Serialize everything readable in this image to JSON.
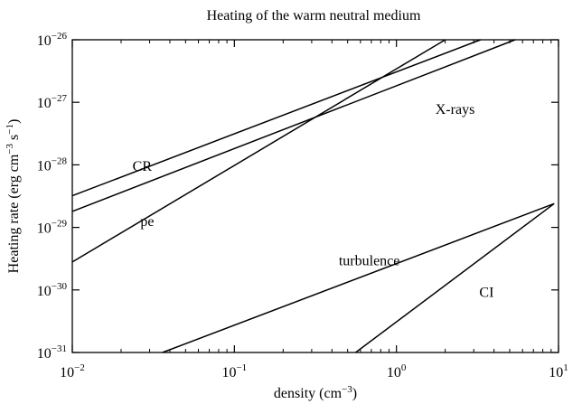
{
  "chart_data": {
    "type": "line",
    "title": "Heating of the warm neutral medium",
    "xlabel": "density (cm",
    "xlabel_exp": "−3",
    "xlabel_end": ")",
    "ylabel": {
      "pre": "Heating rate (erg cm",
      "exp1": "−3",
      "mid": " s",
      "exp2": "−1",
      "post": ")"
    },
    "x_scale": "log",
    "y_scale": "log",
    "xlim": [
      0.01,
      10
    ],
    "ylim": [
      1e-31,
      1e-26
    ],
    "grid": false,
    "x_ticks": [
      {
        "value": 0.01,
        "base": "10",
        "exp": "−2"
      },
      {
        "value": 0.1,
        "base": "10",
        "exp": "−1"
      },
      {
        "value": 1,
        "base": "10",
        "exp": "0"
      },
      {
        "value": 10,
        "base": "10",
        "exp": "1"
      }
    ],
    "y_ticks": [
      {
        "value": 1e-31,
        "base": "10",
        "exp": "−31"
      },
      {
        "value": 1e-30,
        "base": "10",
        "exp": "−30"
      },
      {
        "value": 1e-29,
        "base": "10",
        "exp": "−29"
      },
      {
        "value": 1e-28,
        "base": "10",
        "exp": "−28"
      },
      {
        "value": 1e-27,
        "base": "10",
        "exp": "−27"
      },
      {
        "value": 1e-26,
        "base": "10",
        "exp": "−26"
      }
    ],
    "series": [
      {
        "name": "CR",
        "x": [
          0.01,
          3.3
        ],
        "y": [
          3.2e-29,
          1e-26
        ],
        "label_at": [
          0.027,
          8e-29
        ]
      },
      {
        "name": "X-rays",
        "x": [
          0.01,
          5.4
        ],
        "y": [
          1.8e-29,
          1e-26
        ],
        "label_at": [
          2.3,
          6.5e-28
        ]
      },
      {
        "name": "pe",
        "x": [
          0.01,
          2.0
        ],
        "y": [
          2.8e-30,
          1e-26
        ],
        "label_at": [
          0.029,
          1.05e-29
        ]
      },
      {
        "name": "turbulence",
        "x": [
          0.036,
          9.4
        ],
        "y": [
          1e-31,
          2.4e-29
        ],
        "label_at": [
          0.68,
          2.5e-30
        ]
      },
      {
        "name": "CI",
        "x": [
          0.56,
          9.4
        ],
        "y": [
          1e-31,
          2.4e-29
        ],
        "label_at": [
          3.6,
          7.8e-31
        ]
      }
    ]
  }
}
